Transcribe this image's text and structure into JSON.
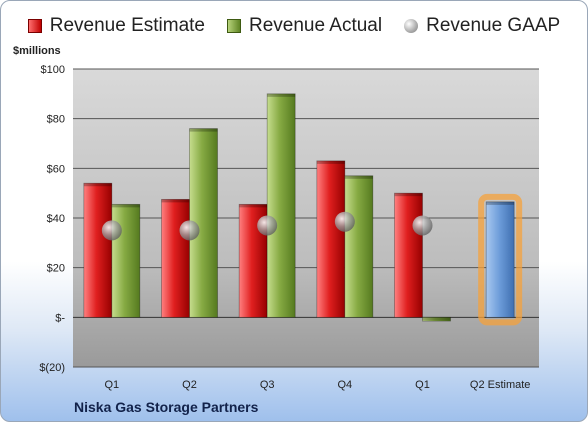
{
  "legend": {
    "estimate": "Revenue Estimate",
    "actual": "Revenue Actual",
    "gaap": "Revenue GAAP"
  },
  "units_label": "$millions",
  "footer_title": "Niska Gas Storage Partners",
  "colors": {
    "estimate": "#d81e1e",
    "actual": "#7ea33a",
    "gaap": "#9a9a9a",
    "estimate_highlight": "#6a9ad8",
    "glow": "#f5a13b"
  },
  "chart_data": {
    "type": "bar",
    "categories": [
      "Q1",
      "Q2",
      "Q3",
      "Q4",
      "Q1",
      "Q2 Estimate"
    ],
    "series": [
      {
        "name": "Revenue Estimate",
        "values": [
          54,
          47.5,
          45.5,
          63,
          50,
          46.5
        ]
      },
      {
        "name": "Revenue Actual",
        "values": [
          45.5,
          76,
          90,
          57,
          -1.5,
          null
        ]
      },
      {
        "name": "Revenue GAAP",
        "values": [
          35,
          35,
          37,
          38.5,
          37,
          null
        ]
      }
    ],
    "y_ticks": [
      {
        "value": 100,
        "label": "$100"
      },
      {
        "value": 80,
        "label": "$80"
      },
      {
        "value": 60,
        "label": "$60"
      },
      {
        "value": 40,
        "label": "$40"
      },
      {
        "value": 20,
        "label": "$20"
      },
      {
        "value": 0,
        "label": "$-"
      },
      {
        "value": -20,
        "label": "$(20)"
      }
    ],
    "ylim": [
      -20,
      100
    ],
    "grid": true
  }
}
